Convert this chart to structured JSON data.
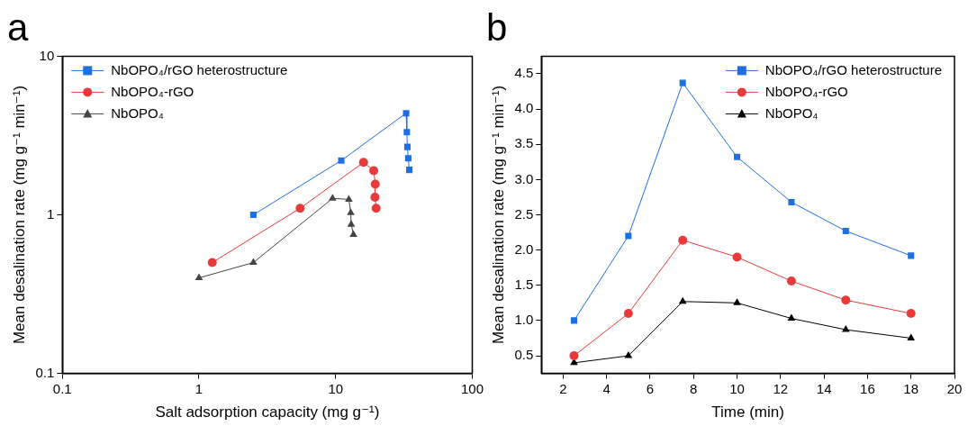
{
  "chart_data": [
    {
      "type": "line",
      "title": "a",
      "xlabel": "Salt adsorption capacity (mg g⁻¹)",
      "ylabel": "Mean desalination rate (mg g⁻¹ min⁻¹)",
      "log": "xy",
      "xlim": [
        0.1,
        100
      ],
      "ylim": [
        0.1,
        10
      ],
      "xticks": [
        0.1,
        1,
        10,
        100
      ],
      "yticks": [
        0.1,
        1,
        10
      ],
      "grid": false,
      "legend": "top left",
      "series": [
        {
          "name": "NbOPO₄/rGO heterostructure",
          "color": "#1f6fe0",
          "marker": "square",
          "x": [
            2.5,
            11,
            32.8,
            33.2,
            33.5,
            34,
            34.6
          ],
          "values": [
            1.0,
            2.2,
            4.37,
            3.32,
            2.68,
            2.27,
            1.92
          ]
        },
        {
          "name": "NbOPO₄-rGO",
          "color": "#e83a3a",
          "marker": "circle",
          "x": [
            1.25,
            5.5,
            16,
            19,
            19.5,
            19.4,
            19.8
          ],
          "values": [
            0.5,
            1.1,
            2.14,
            1.9,
            1.56,
            1.29,
            1.1
          ]
        },
        {
          "name": "NbOPO₄",
          "color": "#444444",
          "marker": "triangle",
          "x": [
            1.0,
            2.5,
            9.5,
            12.5,
            12.9,
            13,
            13.5
          ],
          "values": [
            0.4,
            0.5,
            1.27,
            1.25,
            1.03,
            0.87,
            0.75
          ]
        }
      ]
    },
    {
      "type": "line",
      "title": "b",
      "xlabel": "Time (min)",
      "ylabel": "Mean desalination rate (mg g⁻¹ min⁻¹)",
      "xlim": [
        1,
        20
      ],
      "ylim": [
        0.25,
        4.75
      ],
      "xticks": [
        2,
        4,
        6,
        8,
        10,
        12,
        14,
        16,
        18,
        20
      ],
      "yticks": [
        {
          "value": 0.5,
          "label": "0.5"
        },
        {
          "value": 1,
          "label": "1.0"
        },
        {
          "value": 1.5,
          "label": "1.5"
        },
        {
          "value": 2,
          "label": "2.0"
        },
        {
          "value": 2.5,
          "label": "2.5"
        },
        {
          "value": 3,
          "label": "3.0"
        },
        {
          "value": 3.5,
          "label": "3.5"
        },
        {
          "value": 4,
          "label": "4.0"
        },
        {
          "value": 4.5,
          "label": "4.5"
        }
      ],
      "grid": false,
      "legend": "top right",
      "x": [
        2.5,
        5,
        7.5,
        10,
        12.5,
        15,
        18
      ],
      "series": [
        {
          "name": "NbOPO₄/rGO heterostructure",
          "color": "#1f6fe0",
          "marker": "square",
          "values": [
            1.0,
            2.2,
            4.37,
            3.32,
            2.68,
            2.27,
            1.92
          ]
        },
        {
          "name": "NbOPO₄-rGO",
          "color": "#e83a3a",
          "marker": "circle",
          "values": [
            0.5,
            1.1,
            2.14,
            1.9,
            1.56,
            1.29,
            1.1
          ]
        },
        {
          "name": "NbOPO₄",
          "color": "#000000",
          "marker": "triangle",
          "values": [
            0.4,
            0.5,
            1.27,
            1.25,
            1.03,
            0.87,
            0.75
          ]
        }
      ]
    }
  ]
}
